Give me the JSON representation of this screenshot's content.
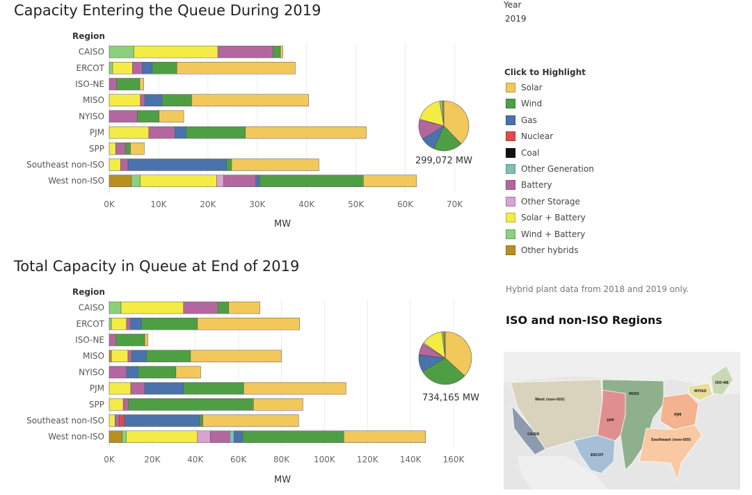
{
  "filter": {
    "label": "Year",
    "value": "2019"
  },
  "legend": {
    "title": "Click to Highlight",
    "items": [
      {
        "name": "Solar",
        "color": "#F2C85B"
      },
      {
        "name": "Wind",
        "color": "#4E9F44"
      },
      {
        "name": "Gas",
        "color": "#4A73AE"
      },
      {
        "name": "Nuclear",
        "color": "#E24A4A"
      },
      {
        "name": "Coal",
        "color": "#111111"
      },
      {
        "name": "Other Generation",
        "color": "#7FBFB9"
      },
      {
        "name": "Battery",
        "color": "#B4679F"
      },
      {
        "name": "Other Storage",
        "color": "#D9A3D3"
      },
      {
        "name": "Solar + Battery",
        "color": "#F4EC45"
      },
      {
        "name": "Wind + Battery",
        "color": "#8BD17B"
      },
      {
        "name": "Other hybrids",
        "color": "#B8901E"
      }
    ]
  },
  "note": "Hybrid plant data from 2018 and 2019 only.",
  "map": {
    "title": "ISO and non-ISO Regions",
    "labels": [
      "West (non-ISO)",
      "MISO",
      "SPP",
      "CAISO",
      "ERCOT",
      "PJM",
      "Southeast (non-ISO)",
      "NYISO",
      "ISO-NE"
    ]
  },
  "chart_data": [
    {
      "type": "bar",
      "orientation": "horizontal",
      "stacked": true,
      "title": "Capacity Entering the Queue During 2019",
      "xlabel": "MW",
      "ylabel": "Region",
      "xlim": [
        0,
        75000
      ],
      "xticks": [
        0,
        10000,
        20000,
        30000,
        40000,
        50000,
        60000,
        70000
      ],
      "xtick_labels": [
        "0K",
        "10K",
        "20K",
        "30K",
        "40K",
        "50K",
        "60K",
        "70K"
      ],
      "categories": [
        "CAISO",
        "ERCOT",
        "ISO-NE",
        "MISO",
        "NYISO",
        "PJM",
        "SPP",
        "Southeast non-ISO",
        "West non-ISO"
      ],
      "series": [
        {
          "name": "Other hybrids",
          "values": [
            0,
            0,
            0,
            0,
            0,
            0,
            0,
            0,
            4500
          ]
        },
        {
          "name": "Wind + Battery",
          "values": [
            5000,
            700,
            0,
            0,
            0,
            0,
            0,
            0,
            1800
          ]
        },
        {
          "name": "Solar + Battery",
          "values": [
            17000,
            4000,
            0,
            6300,
            0,
            8000,
            1300,
            2300,
            15500
          ]
        },
        {
          "name": "Other Storage",
          "values": [
            200,
            0,
            0,
            0,
            0,
            0,
            0,
            0,
            1400
          ]
        },
        {
          "name": "Battery",
          "values": [
            11000,
            2000,
            1500,
            900,
            5700,
            5300,
            2000,
            1500,
            6500
          ]
        },
        {
          "name": "Other Generation",
          "values": [
            0,
            0,
            0,
            0,
            0,
            0,
            0,
            0,
            0
          ]
        },
        {
          "name": "Coal",
          "values": [
            0,
            0,
            0,
            0,
            0,
            0,
            0,
            0,
            0
          ]
        },
        {
          "name": "Nuclear",
          "values": [
            0,
            0,
            0,
            0,
            0,
            0,
            0,
            0,
            0
          ]
        },
        {
          "name": "Gas",
          "values": [
            0,
            2000,
            0,
            3500,
            0,
            2300,
            0,
            20000,
            800
          ]
        },
        {
          "name": "Wind",
          "values": [
            1500,
            5000,
            4700,
            6000,
            4400,
            12000,
            1000,
            1000,
            21000
          ]
        },
        {
          "name": "Solar",
          "values": [
            500,
            24000,
            800,
            23700,
            5000,
            24500,
            2800,
            17700,
            10800
          ]
        }
      ],
      "pie": {
        "total_label": "299,072 MW",
        "slices": [
          {
            "name": "Solar",
            "value": 113000
          },
          {
            "name": "Wind",
            "value": 56000
          },
          {
            "name": "Gas",
            "value": 29000
          },
          {
            "name": "Battery",
            "value": 37000
          },
          {
            "name": "Other Storage",
            "value": 2000
          },
          {
            "name": "Solar + Battery",
            "value": 54000
          },
          {
            "name": "Wind + Battery",
            "value": 5000
          },
          {
            "name": "Other hybrids",
            "value": 3000
          }
        ]
      }
    },
    {
      "type": "bar",
      "orientation": "horizontal",
      "stacked": true,
      "title": "Total Capacity in Queue at End of 2019",
      "xlabel": "MW",
      "ylabel": "Region",
      "xlim": [
        0,
        160000
      ],
      "xticks": [
        0,
        20000,
        40000,
        60000,
        80000,
        100000,
        120000,
        140000,
        160000
      ],
      "xtick_labels": [
        "0K",
        "20K",
        "40K",
        "60K",
        "80K",
        "100K",
        "120K",
        "140K",
        "160K"
      ],
      "categories": [
        "CAISO",
        "ERCOT",
        "ISO-NE",
        "MISO",
        "NYISO",
        "PJM",
        "SPP",
        "Southeast non-ISO",
        "West non-ISO"
      ],
      "series": [
        {
          "name": "Other hybrids",
          "values": [
            0,
            0,
            0,
            1000,
            0,
            0,
            0,
            0,
            6000
          ]
        },
        {
          "name": "Wind + Battery",
          "values": [
            5500,
            1000,
            0,
            0,
            0,
            0,
            0,
            0,
            2000
          ]
        },
        {
          "name": "Solar + Battery",
          "values": [
            29000,
            7000,
            0,
            7700,
            0,
            10000,
            6500,
            2700,
            33000
          ]
        },
        {
          "name": "Other Storage",
          "values": [
            0,
            0,
            0,
            0,
            0,
            0,
            0,
            0,
            6000
          ]
        },
        {
          "name": "Battery",
          "values": [
            16000,
            2000,
            3000,
            1800,
            8000,
            6500,
            2500,
            2000,
            9000
          ]
        },
        {
          "name": "Other Generation",
          "values": [
            0,
            0,
            0,
            0,
            0,
            0,
            0,
            0,
            2000
          ]
        },
        {
          "name": "Coal",
          "values": [
            0,
            0,
            0,
            0,
            0,
            0,
            0,
            0,
            0
          ]
        },
        {
          "name": "Nuclear",
          "values": [
            0,
            0,
            0,
            0,
            0,
            0,
            0,
            2300,
            0
          ]
        },
        {
          "name": "Gas",
          "values": [
            0,
            5000,
            0,
            6800,
            5500,
            18000,
            0,
            35000,
            4000
          ]
        },
        {
          "name": "Wind",
          "values": [
            5000,
            26000,
            13500,
            20500,
            17500,
            28000,
            58000,
            1500,
            47000
          ]
        },
        {
          "name": "Solar",
          "values": [
            14500,
            47500,
            1500,
            42200,
            11500,
            47500,
            23000,
            44500,
            38000
          ]
        }
      ],
      "pie": {
        "total_label": "734,165 MW",
        "slices": [
          {
            "name": "Solar",
            "value": 270000
          },
          {
            "name": "Wind",
            "value": 217000
          },
          {
            "name": "Gas",
            "value": 75000
          },
          {
            "name": "Nuclear",
            "value": 2300
          },
          {
            "name": "Battery",
            "value": 50800
          },
          {
            "name": "Other Storage",
            "value": 6000
          },
          {
            "name": "Solar + Battery",
            "value": 96000
          },
          {
            "name": "Wind + Battery",
            "value": 8500
          },
          {
            "name": "Other hybrids",
            "value": 7000
          }
        ]
      }
    }
  ]
}
